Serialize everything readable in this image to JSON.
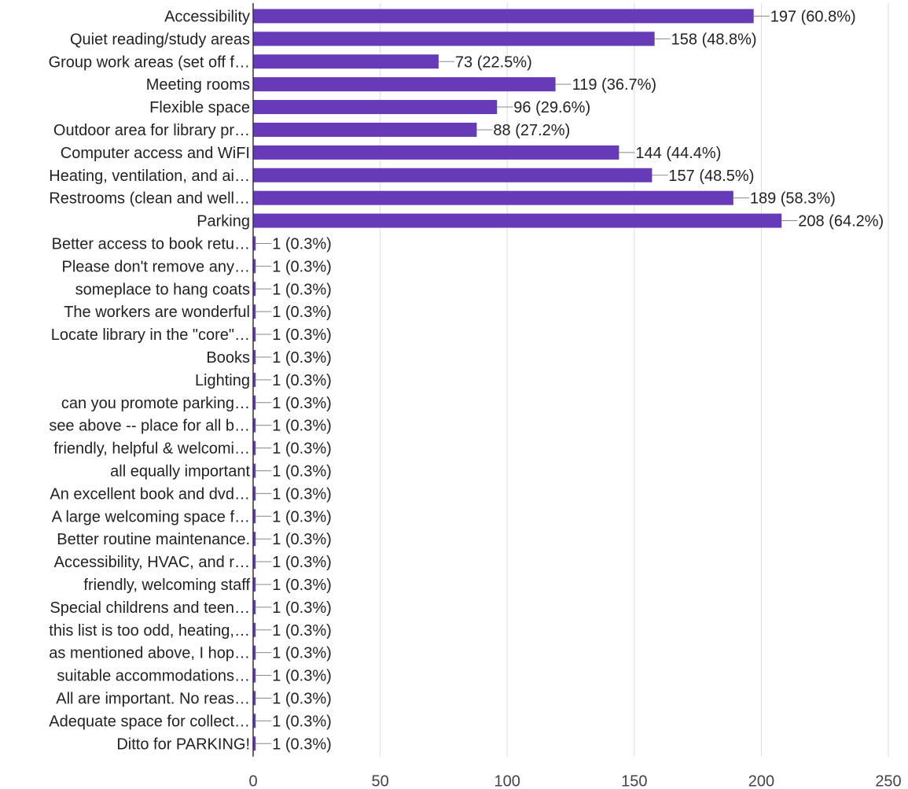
{
  "chart_data": {
    "type": "bar",
    "orientation": "horizontal",
    "title": "",
    "xlabel": "",
    "ylabel": "",
    "xlim": [
      0,
      250
    ],
    "x_ticks": [
      0,
      50,
      100,
      150,
      200,
      250
    ],
    "grid": true,
    "legend": "none",
    "bar_color": "#673ab7",
    "categories": [
      "Accessibility",
      "Quiet reading/study areas",
      "Group work areas (set off f…",
      "Meeting rooms",
      "Flexible space",
      "Outdoor area for library pr…",
      "Computer access and WiFI",
      "Heating, ventilation, and ai…",
      "Restrooms (clean and well…",
      "Parking",
      "Better access to book retu…",
      "Please don't remove any…",
      "someplace to hang coats",
      "The workers are wonderful",
      "Locate library in the \"core\"…",
      "Books",
      "Lighting",
      "can you promote parking…",
      "see above -- place for all b…",
      "friendly, helpful & welcomi…",
      "all equally important",
      "An excellent book and dvd…",
      "A large welcoming space f…",
      "Better routine maintenance.",
      "Accessibility, HVAC, and r…",
      "friendly, welcoming staff",
      "Special childrens and teen…",
      "this list is too odd, heating,…",
      "as mentioned above, I hop…",
      "suitable accommodations…",
      "All are important. No reas…",
      "Adequate space for collect…",
      "Ditto for PARKING!"
    ],
    "values": [
      197,
      158,
      73,
      119,
      96,
      88,
      144,
      157,
      189,
      208,
      1,
      1,
      1,
      1,
      1,
      1,
      1,
      1,
      1,
      1,
      1,
      1,
      1,
      1,
      1,
      1,
      1,
      1,
      1,
      1,
      1,
      1,
      1
    ],
    "value_labels": [
      "197 (60.8%)",
      "158 (48.8%)",
      "73 (22.5%)",
      "119 (36.7%)",
      "96 (29.6%)",
      "88 (27.2%)",
      "144 (44.4%)",
      "157 (48.5%)",
      "189 (58.3%)",
      "208 (64.2%)",
      "1 (0.3%)",
      "1 (0.3%)",
      "1 (0.3%)",
      "1 (0.3%)",
      "1 (0.3%)",
      "1 (0.3%)",
      "1 (0.3%)",
      "1 (0.3%)",
      "1 (0.3%)",
      "1 (0.3%)",
      "1 (0.3%)",
      "1 (0.3%)",
      "1 (0.3%)",
      "1 (0.3%)",
      "1 (0.3%)",
      "1 (0.3%)",
      "1 (0.3%)",
      "1 (0.3%)",
      "1 (0.3%)",
      "1 (0.3%)",
      "1 (0.3%)",
      "1 (0.3%)",
      "1 (0.3%)"
    ]
  }
}
